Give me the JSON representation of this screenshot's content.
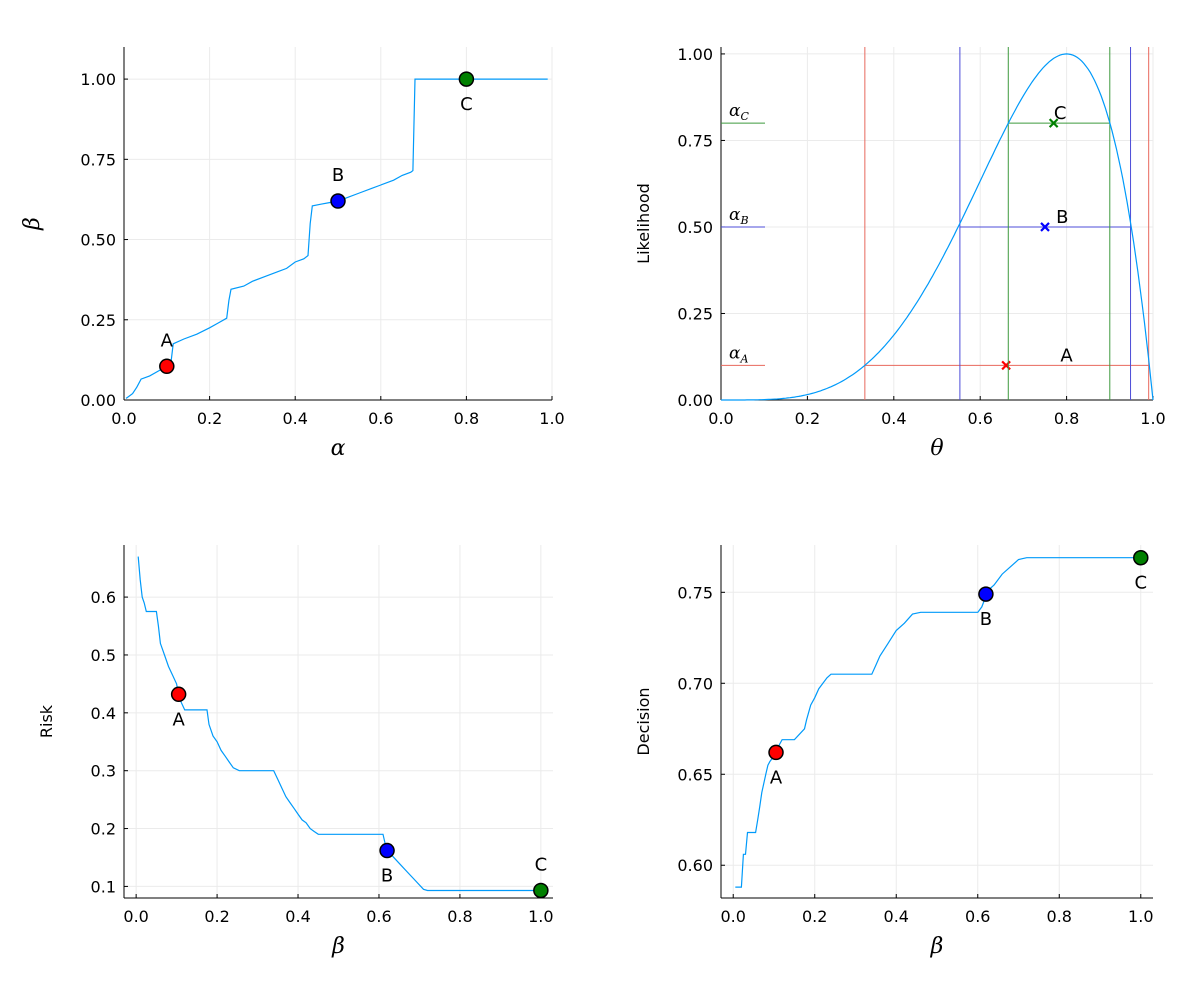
{
  "colors": {
    "curve": "#009AFA",
    "A": "#FF0000",
    "B": "#0000FF",
    "C": "#008000",
    "A_line": "#E8685D",
    "B_line": "#4C4CD8",
    "C_line": "#3E9A3E",
    "grid": "#EBEBEB",
    "axis": "#000000"
  },
  "chart_data": [
    {
      "id": "panel-beta-vs-alpha",
      "type": "line",
      "xlabel": "α",
      "ylabel": "β",
      "xlim": [
        0,
        1.0
      ],
      "ylim": [
        0,
        1.1
      ],
      "xticks": [
        0.0,
        0.2,
        0.4,
        0.6,
        0.8,
        1.0
      ],
      "xtick_labels": [
        "0.0",
        "0.2",
        "0.4",
        "0.6",
        "0.8",
        "1.0"
      ],
      "yticks": [
        0.0,
        0.25,
        0.5,
        0.75,
        1.0
      ],
      "ytick_labels": [
        "0.00",
        "0.25",
        "0.50",
        "0.75",
        "1.00"
      ],
      "grid": true,
      "series": [
        {
          "x": [
            0.005,
            0.02,
            0.03,
            0.04,
            0.06,
            0.08,
            0.1,
            0.11,
            0.115,
            0.14,
            0.17,
            0.2,
            0.22,
            0.24,
            0.245,
            0.25,
            0.28,
            0.3,
            0.33,
            0.36,
            0.38,
            0.4,
            0.42,
            0.43,
            0.435,
            0.44,
            0.46,
            0.48,
            0.5,
            0.52,
            0.55,
            0.58,
            0.6,
            0.63,
            0.65,
            0.67,
            0.675,
            0.68,
            0.7,
            0.75,
            0.8,
            0.9,
            0.99
          ],
          "y": [
            0.005,
            0.02,
            0.04,
            0.065,
            0.075,
            0.09,
            0.105,
            0.12,
            0.175,
            0.19,
            0.205,
            0.225,
            0.24,
            0.255,
            0.31,
            0.345,
            0.355,
            0.37,
            0.385,
            0.4,
            0.41,
            0.43,
            0.44,
            0.45,
            0.55,
            0.605,
            0.61,
            0.615,
            0.62,
            0.63,
            0.645,
            0.66,
            0.67,
            0.685,
            0.7,
            0.71,
            0.715,
            1.0,
            1.0,
            1.0,
            1.0,
            1.0,
            1.0
          ]
        }
      ],
      "points": [
        {
          "name": "A",
          "x": 0.1,
          "y": 0.105,
          "label_pos": "above"
        },
        {
          "name": "B",
          "x": 0.5,
          "y": 0.62,
          "label_pos": "above"
        },
        {
          "name": "C",
          "x": 0.8,
          "y": 1.0,
          "label_pos": "below"
        }
      ]
    },
    {
      "id": "panel-likelihood",
      "type": "line",
      "xlabel": "θ",
      "ylabel": "Likelihood",
      "xlim": [
        0,
        1.0
      ],
      "ylim": [
        0,
        1.02
      ],
      "xticks": [
        0.0,
        0.2,
        0.4,
        0.6,
        0.8,
        1.0
      ],
      "xtick_labels": [
        "0.0",
        "0.2",
        "0.4",
        "0.6",
        "0.8",
        "1.0"
      ],
      "yticks": [
        0.0,
        0.25,
        0.5,
        0.75,
        1.0
      ],
      "ytick_labels": [
        "0.00",
        "0.25",
        "0.50",
        "0.75",
        "1.00"
      ],
      "grid": true,
      "curve": {
        "formula": "theta^4 (1-theta) normalized to peak 1 at 0.8",
        "samples": 200
      },
      "levels": [
        {
          "name": "A",
          "alpha_label": "α",
          "alpha_sub": "A",
          "level": 0.1,
          "interval": [
            0.333,
            0.99
          ],
          "estimate": 0.66,
          "label_x": 0.8
        },
        {
          "name": "B",
          "alpha_label": "α",
          "alpha_sub": "B",
          "level": 0.5,
          "interval": [
            0.553,
            0.948
          ],
          "estimate": 0.75,
          "label_x": 0.79
        },
        {
          "name": "C",
          "alpha_label": "α",
          "alpha_sub": "C",
          "level": 0.8,
          "interval": [
            0.665,
            0.9
          ],
          "estimate": 0.77,
          "label_x": 0.785
        }
      ]
    },
    {
      "id": "panel-risk",
      "type": "line",
      "xlabel": "β",
      "ylabel": "Risk",
      "xlim": [
        -0.03,
        1.03
      ],
      "ylim": [
        0.08,
        0.69
      ],
      "xticks": [
        0.0,
        0.2,
        0.4,
        0.6,
        0.8,
        1.0
      ],
      "xtick_labels": [
        "0.0",
        "0.2",
        "0.4",
        "0.6",
        "0.8",
        "1.0"
      ],
      "yticks": [
        0.1,
        0.2,
        0.3,
        0.4,
        0.5,
        0.6
      ],
      "ytick_labels": [
        "0.1",
        "0.2",
        "0.3",
        "0.4",
        "0.5",
        "0.6"
      ],
      "grid": true,
      "series": [
        {
          "x": [
            0.005,
            0.01,
            0.015,
            0.02,
            0.025,
            0.04,
            0.05,
            0.055,
            0.06,
            0.07,
            0.08,
            0.09,
            0.1,
            0.105,
            0.11,
            0.12,
            0.175,
            0.18,
            0.19,
            0.2,
            0.21,
            0.22,
            0.23,
            0.24,
            0.255,
            0.34,
            0.35,
            0.36,
            0.37,
            0.38,
            0.39,
            0.4,
            0.41,
            0.42,
            0.43,
            0.44,
            0.45,
            0.5,
            0.61,
            0.615,
            0.62,
            0.63,
            0.65,
            0.67,
            0.69,
            0.71,
            0.72,
            0.8,
            0.9,
            1.0
          ],
          "y": [
            0.67,
            0.63,
            0.6,
            0.59,
            0.575,
            0.575,
            0.575,
            0.55,
            0.52,
            0.5,
            0.48,
            0.465,
            0.45,
            0.43,
            0.42,
            0.405,
            0.405,
            0.38,
            0.36,
            0.35,
            0.335,
            0.325,
            0.315,
            0.305,
            0.3,
            0.3,
            0.285,
            0.27,
            0.255,
            0.245,
            0.235,
            0.225,
            0.215,
            0.21,
            0.2,
            0.195,
            0.19,
            0.19,
            0.19,
            0.175,
            0.162,
            0.155,
            0.14,
            0.125,
            0.11,
            0.095,
            0.093,
            0.093,
            0.093,
            0.093
          ]
        }
      ],
      "points": [
        {
          "name": "A",
          "x": 0.105,
          "y": 0.432,
          "label_pos": "below"
        },
        {
          "name": "B",
          "x": 0.62,
          "y": 0.162,
          "label_pos": "below"
        },
        {
          "name": "C",
          "x": 1.0,
          "y": 0.093,
          "label_pos": "above"
        }
      ]
    },
    {
      "id": "panel-decision",
      "type": "line",
      "xlabel": "β",
      "ylabel": "Decision",
      "xlim": [
        -0.03,
        1.03
      ],
      "ylim": [
        0.582,
        0.776
      ],
      "xticks": [
        0.0,
        0.2,
        0.4,
        0.6,
        0.8,
        1.0
      ],
      "xtick_labels": [
        "0.0",
        "0.2",
        "0.4",
        "0.6",
        "0.8",
        "1.0"
      ],
      "yticks": [
        0.6,
        0.65,
        0.7,
        0.75
      ],
      "ytick_labels": [
        "0.60",
        "0.65",
        "0.70",
        "0.75"
      ],
      "grid": true,
      "series": [
        {
          "x": [
            0.005,
            0.02,
            0.025,
            0.03,
            0.035,
            0.055,
            0.06,
            0.065,
            0.07,
            0.075,
            0.08,
            0.085,
            0.09,
            0.1,
            0.11,
            0.12,
            0.15,
            0.175,
            0.18,
            0.19,
            0.2,
            0.21,
            0.22,
            0.23,
            0.24,
            0.25,
            0.34,
            0.35,
            0.36,
            0.38,
            0.4,
            0.42,
            0.44,
            0.46,
            0.5,
            0.6,
            0.61,
            0.615,
            0.62,
            0.64,
            0.66,
            0.68,
            0.7,
            0.72,
            0.8,
            0.9,
            1.0
          ],
          "y": [
            0.588,
            0.588,
            0.606,
            0.606,
            0.618,
            0.618,
            0.625,
            0.632,
            0.64,
            0.645,
            0.65,
            0.655,
            0.657,
            0.66,
            0.665,
            0.669,
            0.669,
            0.675,
            0.68,
            0.688,
            0.692,
            0.697,
            0.7,
            0.703,
            0.705,
            0.705,
            0.705,
            0.71,
            0.715,
            0.722,
            0.729,
            0.733,
            0.738,
            0.739,
            0.739,
            0.739,
            0.742,
            0.745,
            0.75,
            0.754,
            0.76,
            0.764,
            0.768,
            0.769,
            0.769,
            0.769,
            0.769
          ]
        }
      ],
      "points": [
        {
          "name": "A",
          "x": 0.105,
          "y": 0.662,
          "label_pos": "below"
        },
        {
          "name": "B",
          "x": 0.62,
          "y": 0.749,
          "label_pos": "below"
        },
        {
          "name": "C",
          "x": 1.0,
          "y": 0.769,
          "label_pos": "below"
        }
      ]
    }
  ]
}
